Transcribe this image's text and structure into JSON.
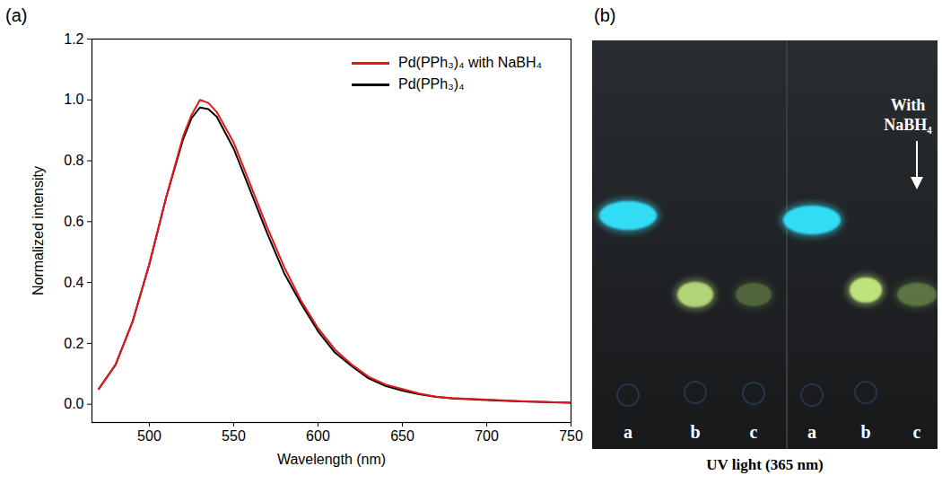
{
  "chart_data": {
    "type": "line",
    "panel": "(a)",
    "x_label": "Wavelength (nm)",
    "y_label": "Normalized intensity",
    "x": [
      470,
      480,
      490,
      500,
      510,
      520,
      525,
      530,
      535,
      540,
      550,
      560,
      570,
      580,
      590,
      600,
      610,
      620,
      630,
      640,
      650,
      660,
      670,
      680,
      700,
      720,
      750
    ],
    "series": [
      {
        "name": "Pd(PPh₃)₄ with NaBH₄",
        "color": "#e8161b",
        "values": [
          0.05,
          0.13,
          0.27,
          0.46,
          0.68,
          0.88,
          0.95,
          1.0,
          0.99,
          0.96,
          0.86,
          0.72,
          0.58,
          0.45,
          0.34,
          0.25,
          0.18,
          0.13,
          0.09,
          0.065,
          0.05,
          0.035,
          0.025,
          0.02,
          0.015,
          0.01,
          0.005
        ]
      },
      {
        "name": "Pd(PPh₃)₄",
        "color": "#000000",
        "values": [
          0.05,
          0.13,
          0.27,
          0.46,
          0.68,
          0.87,
          0.94,
          0.975,
          0.97,
          0.945,
          0.84,
          0.7,
          0.56,
          0.43,
          0.33,
          0.24,
          0.17,
          0.125,
          0.085,
          0.06,
          0.045,
          0.033,
          0.024,
          0.019,
          0.014,
          0.009,
          0.005
        ]
      }
    ],
    "xlim": [
      466,
      750
    ],
    "xticks": [
      500,
      550,
      600,
      650,
      700,
      750
    ],
    "ylim": [
      -0.06,
      1.2
    ],
    "yticks": [
      {
        "value": 0,
        "label": "0.0"
      },
      {
        "value": 0.2,
        "label": "0.2"
      },
      {
        "value": 0.4,
        "label": "0.4"
      },
      {
        "value": 0.6,
        "label": "0.6"
      },
      {
        "value": 0.8,
        "label": "0.8"
      },
      {
        "value": 1.0,
        "label": "1.0"
      },
      {
        "value": 1.2,
        "label": "1.2"
      }
    ],
    "grid": false,
    "legend": "upper right"
  },
  "image_panel": {
    "panel": "(b)",
    "caption": "UV light (365 nm)",
    "lanes": [
      "a",
      "b",
      "c",
      "a",
      "b",
      "c"
    ],
    "annotation": "With NaBH₄"
  }
}
